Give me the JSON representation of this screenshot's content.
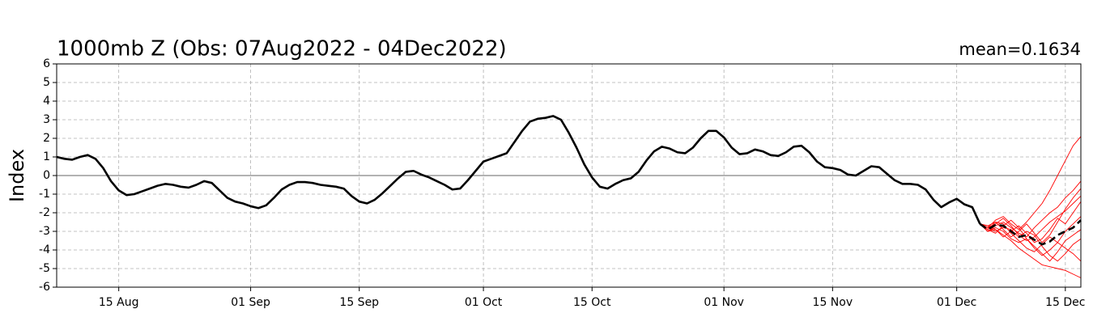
{
  "chart_data": {
    "type": "line",
    "title": "1000mb Z (Obs: 07Aug2022 - 04Dec2022)",
    "annotation": "mean=0.1634",
    "ylabel": "Index",
    "xlim": [
      "2022-08-07",
      "2022-12-17"
    ],
    "xticks": [
      {
        "value": "2022-08-15",
        "label": "15 Aug"
      },
      {
        "value": "2022-09-01",
        "label": "01 Sep"
      },
      {
        "value": "2022-09-15",
        "label": "15 Sep"
      },
      {
        "value": "2022-10-01",
        "label": "01 Oct"
      },
      {
        "value": "2022-10-15",
        "label": "15 Oct"
      },
      {
        "value": "2022-11-01",
        "label": "01 Nov"
      },
      {
        "value": "2022-11-15",
        "label": "15 Nov"
      },
      {
        "value": "2022-12-01",
        "label": "01 Dec"
      },
      {
        "value": "2022-12-15",
        "label": "15 Dec"
      }
    ],
    "ylim": [
      -6,
      6
    ],
    "yticks": [
      -6,
      -5,
      -4,
      -3,
      -2,
      -1,
      0,
      1,
      2,
      3,
      4,
      5,
      6
    ],
    "grid": true,
    "zero_line": 0,
    "series": [
      {
        "color": "#ff0000",
        "linestyle": "solid",
        "x": [
          "2022-12-04",
          "2022-12-05",
          "2022-12-06",
          "2022-12-07",
          "2022-12-08",
          "2022-12-09",
          "2022-12-10",
          "2022-12-11",
          "2022-12-12",
          "2022-12-13",
          "2022-12-14",
          "2022-12-15",
          "2022-12-16",
          "2022-12-17"
        ],
        "values": [
          -2.6,
          -2.8,
          -2.4,
          -2.2,
          -2.6,
          -2.9,
          -2.5,
          -2.0,
          -1.5,
          -0.8,
          0.0,
          0.8,
          1.6,
          2.1
        ]
      },
      {
        "color": "#ff0000",
        "linestyle": "solid",
        "x": [
          "2022-12-04",
          "2022-12-05",
          "2022-12-06",
          "2022-12-07",
          "2022-12-08",
          "2022-12-09",
          "2022-12-10",
          "2022-12-11",
          "2022-12-12",
          "2022-12-13",
          "2022-12-14",
          "2022-12-15",
          "2022-12-16",
          "2022-12-17"
        ],
        "values": [
          -2.6,
          -3.0,
          -2.9,
          -3.2,
          -3.5,
          -3.9,
          -4.2,
          -4.5,
          -4.8,
          -4.9,
          -5.0,
          -5.1,
          -5.3,
          -5.5
        ]
      },
      {
        "color": "#ff0000",
        "linestyle": "solid",
        "x": [
          "2022-12-04",
          "2022-12-05",
          "2022-12-06",
          "2022-12-07",
          "2022-12-08",
          "2022-12-09",
          "2022-12-10",
          "2022-12-11",
          "2022-12-12",
          "2022-12-13",
          "2022-12-14",
          "2022-12-15",
          "2022-12-16",
          "2022-12-17"
        ],
        "values": [
          -2.6,
          -2.7,
          -2.5,
          -2.9,
          -3.3,
          -3.0,
          -2.6,
          -3.1,
          -3.6,
          -3.2,
          -2.5,
          -1.8,
          -1.2,
          -0.7
        ]
      },
      {
        "color": "#ff0000",
        "linestyle": "solid",
        "x": [
          "2022-12-04",
          "2022-12-05",
          "2022-12-06",
          "2022-12-07",
          "2022-12-08",
          "2022-12-09",
          "2022-12-10",
          "2022-12-11",
          "2022-12-12",
          "2022-12-13",
          "2022-12-14",
          "2022-12-15",
          "2022-12-16",
          "2022-12-17"
        ],
        "values": [
          -2.6,
          -2.9,
          -3.1,
          -2.7,
          -2.4,
          -2.8,
          -3.4,
          -3.9,
          -4.3,
          -4.0,
          -3.6,
          -3.9,
          -4.2,
          -4.6
        ]
      },
      {
        "color": "#ff0000",
        "linestyle": "solid",
        "x": [
          "2022-12-04",
          "2022-12-05",
          "2022-12-06",
          "2022-12-07",
          "2022-12-08",
          "2022-12-09",
          "2022-12-10",
          "2022-12-11",
          "2022-12-12",
          "2022-12-13",
          "2022-12-14",
          "2022-12-15",
          "2022-12-16",
          "2022-12-17"
        ],
        "values": [
          -2.6,
          -2.8,
          -2.6,
          -2.3,
          -2.7,
          -3.2,
          -3.5,
          -3.3,
          -2.9,
          -2.5,
          -2.2,
          -1.9,
          -1.5,
          -1.1
        ]
      },
      {
        "color": "#ff0000",
        "linestyle": "solid",
        "x": [
          "2022-12-04",
          "2022-12-05",
          "2022-12-06",
          "2022-12-07",
          "2022-12-08",
          "2022-12-09",
          "2022-12-10",
          "2022-12-11",
          "2022-12-12",
          "2022-12-13",
          "2022-12-14",
          "2022-12-15",
          "2022-12-16",
          "2022-12-17"
        ],
        "values": [
          -2.6,
          -3.0,
          -2.8,
          -3.0,
          -3.4,
          -3.6,
          -3.4,
          -3.8,
          -4.2,
          -4.6,
          -4.1,
          -3.5,
          -3.2,
          -2.9
        ]
      },
      {
        "color": "#ff0000",
        "linestyle": "solid",
        "x": [
          "2022-12-04",
          "2022-12-05",
          "2022-12-06",
          "2022-12-07",
          "2022-12-08",
          "2022-12-09",
          "2022-12-10",
          "2022-12-11",
          "2022-12-12",
          "2022-12-13",
          "2022-12-14",
          "2022-12-15",
          "2022-12-16",
          "2022-12-17"
        ],
        "values": [
          -2.6,
          -2.7,
          -2.9,
          -3.3,
          -3.0,
          -2.7,
          -3.1,
          -3.6,
          -3.4,
          -2.9,
          -2.3,
          -2.6,
          -2.0,
          -1.4
        ]
      },
      {
        "color": "#ff0000",
        "linestyle": "solid",
        "x": [
          "2022-12-04",
          "2022-12-05",
          "2022-12-06",
          "2022-12-07",
          "2022-12-08",
          "2022-12-09",
          "2022-12-10",
          "2022-12-11",
          "2022-12-12",
          "2022-12-13",
          "2022-12-14",
          "2022-12-15",
          "2022-12-16",
          "2022-12-17"
        ],
        "values": [
          -2.6,
          -2.9,
          -2.5,
          -2.6,
          -3.1,
          -3.5,
          -3.9,
          -4.1,
          -3.7,
          -3.3,
          -3.6,
          -3.0,
          -2.6,
          -2.2
        ]
      },
      {
        "color": "#ff0000",
        "linestyle": "solid",
        "x": [
          "2022-12-04",
          "2022-12-05",
          "2022-12-06",
          "2022-12-07",
          "2022-12-08",
          "2022-12-09",
          "2022-12-10",
          "2022-12-11",
          "2022-12-12",
          "2022-12-13",
          "2022-12-14",
          "2022-12-15",
          "2022-12-16",
          "2022-12-17"
        ],
        "values": [
          -2.6,
          -2.8,
          -3.0,
          -2.8,
          -2.9,
          -3.3,
          -3.0,
          -3.2,
          -3.8,
          -4.3,
          -4.6,
          -4.2,
          -3.7,
          -3.4
        ]
      },
      {
        "color": "#ff0000",
        "linestyle": "solid",
        "x": [
          "2022-12-04",
          "2022-12-05",
          "2022-12-06",
          "2022-12-07",
          "2022-12-08",
          "2022-12-09",
          "2022-12-10",
          "2022-12-11",
          "2022-12-12",
          "2022-12-13",
          "2022-12-14",
          "2022-12-15",
          "2022-12-16",
          "2022-12-17"
        ],
        "values": [
          -2.6,
          -3.0,
          -2.7,
          -2.5,
          -2.8,
          -3.1,
          -3.3,
          -2.8,
          -2.4,
          -2.0,
          -1.7,
          -1.2,
          -0.8,
          -0.3
        ]
      },
      {
        "color": "#000000",
        "linestyle": "solid",
        "x": [
          "2022-08-07",
          "2022-08-08",
          "2022-08-09",
          "2022-08-10",
          "2022-08-11",
          "2022-08-12",
          "2022-08-13",
          "2022-08-14",
          "2022-08-15",
          "2022-08-16",
          "2022-08-17",
          "2022-08-18",
          "2022-08-19",
          "2022-08-20",
          "2022-08-21",
          "2022-08-22",
          "2022-08-23",
          "2022-08-24",
          "2022-08-25",
          "2022-08-26",
          "2022-08-27",
          "2022-08-28",
          "2022-08-29",
          "2022-08-30",
          "2022-08-31",
          "2022-09-01",
          "2022-09-02",
          "2022-09-03",
          "2022-09-04",
          "2022-09-05",
          "2022-09-06",
          "2022-09-07",
          "2022-09-08",
          "2022-09-09",
          "2022-09-10",
          "2022-09-11",
          "2022-09-12",
          "2022-09-13",
          "2022-09-14",
          "2022-09-15",
          "2022-09-16",
          "2022-09-17",
          "2022-09-18",
          "2022-09-19",
          "2022-09-20",
          "2022-09-21",
          "2022-09-22",
          "2022-09-23",
          "2022-09-24",
          "2022-09-25",
          "2022-09-26",
          "2022-09-27",
          "2022-09-28",
          "2022-09-29",
          "2022-09-30",
          "2022-10-01",
          "2022-10-02",
          "2022-10-03",
          "2022-10-04",
          "2022-10-05",
          "2022-10-06",
          "2022-10-07",
          "2022-10-08",
          "2022-10-09",
          "2022-10-10",
          "2022-10-11",
          "2022-10-12",
          "2022-10-13",
          "2022-10-14",
          "2022-10-15",
          "2022-10-16",
          "2022-10-17",
          "2022-10-18",
          "2022-10-19",
          "2022-10-20",
          "2022-10-21",
          "2022-10-22",
          "2022-10-23",
          "2022-10-24",
          "2022-10-25",
          "2022-10-26",
          "2022-10-27",
          "2022-10-28",
          "2022-10-29",
          "2022-10-30",
          "2022-10-31",
          "2022-11-01",
          "2022-11-02",
          "2022-11-03",
          "2022-11-04",
          "2022-11-05",
          "2022-11-06",
          "2022-11-07",
          "2022-11-08",
          "2022-11-09",
          "2022-11-10",
          "2022-11-11",
          "2022-11-12",
          "2022-11-13",
          "2022-11-14",
          "2022-11-15",
          "2022-11-16",
          "2022-11-17",
          "2022-11-18",
          "2022-11-19",
          "2022-11-20",
          "2022-11-21",
          "2022-11-22",
          "2022-11-23",
          "2022-11-24",
          "2022-11-25",
          "2022-11-26",
          "2022-11-27",
          "2022-11-28",
          "2022-11-29",
          "2022-11-30",
          "2022-12-01",
          "2022-12-02",
          "2022-12-03",
          "2022-12-04"
        ],
        "values": [
          1.0,
          0.9,
          0.85,
          1.0,
          1.1,
          0.9,
          0.4,
          -0.3,
          -0.8,
          -1.05,
          -1.0,
          -0.85,
          -0.7,
          -0.55,
          -0.45,
          -0.5,
          -0.6,
          -0.65,
          -0.5,
          -0.3,
          -0.4,
          -0.8,
          -1.2,
          -1.4,
          -1.5,
          -1.65,
          -1.75,
          -1.6,
          -1.2,
          -0.75,
          -0.5,
          -0.35,
          -0.35,
          -0.4,
          -0.5,
          -0.55,
          -0.6,
          -0.7,
          -1.1,
          -1.4,
          -1.5,
          -1.3,
          -0.95,
          -0.55,
          -0.15,
          0.2,
          0.25,
          0.05,
          -0.1,
          -0.3,
          -0.5,
          -0.75,
          -0.7,
          -0.25,
          0.25,
          0.75,
          0.9,
          1.05,
          1.2,
          1.8,
          2.4,
          2.9,
          3.05,
          3.1,
          3.2,
          3.0,
          2.3,
          1.5,
          0.6,
          -0.1,
          -0.6,
          -0.7,
          -0.45,
          -0.25,
          -0.15,
          0.2,
          0.8,
          1.3,
          1.55,
          1.45,
          1.25,
          1.2,
          1.5,
          2.0,
          2.4,
          2.4,
          2.05,
          1.5,
          1.15,
          1.2,
          1.4,
          1.3,
          1.1,
          1.05,
          1.25,
          1.55,
          1.6,
          1.25,
          0.75,
          0.45,
          0.4,
          0.3,
          0.05,
          0.0,
          0.25,
          0.5,
          0.45,
          0.1,
          -0.25,
          -0.45,
          -0.45,
          -0.5,
          -0.75,
          -1.3,
          -1.7,
          -1.45,
          -1.25,
          -1.55,
          -1.7,
          -2.6
        ]
      },
      {
        "color": "#000000",
        "linestyle": "dashed",
        "x": [
          "2022-12-04",
          "2022-12-05",
          "2022-12-06",
          "2022-12-07",
          "2022-12-08",
          "2022-12-09",
          "2022-12-10",
          "2022-12-11",
          "2022-12-12",
          "2022-12-13",
          "2022-12-14",
          "2022-12-15",
          "2022-12-16",
          "2022-12-17"
        ],
        "values": [
          -2.6,
          -2.9,
          -2.65,
          -2.7,
          -3.0,
          -3.3,
          -3.2,
          -3.45,
          -3.7,
          -3.55,
          -3.2,
          -3.0,
          -2.8,
          -2.4
        ]
      }
    ]
  }
}
